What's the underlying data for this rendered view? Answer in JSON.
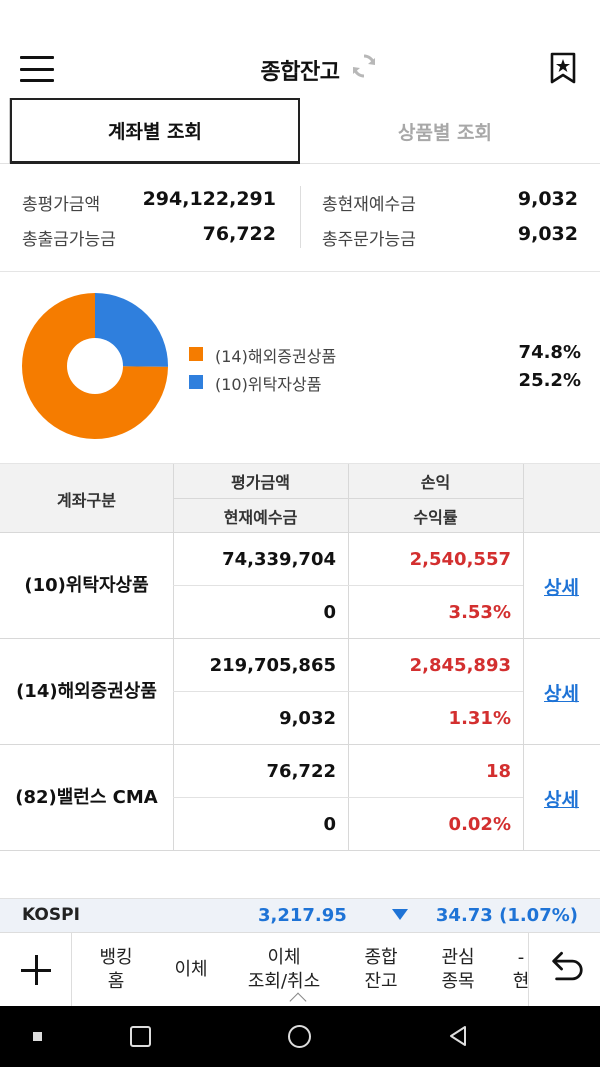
{
  "header": {
    "title": "종합잔고"
  },
  "tabs": [
    {
      "label": "계좌별 조회",
      "active": true
    },
    {
      "label": "상품별 조회",
      "active": false
    }
  ],
  "summary": {
    "total_eval_label": "총평가금액",
    "total_eval_value": "294,122,291",
    "withdrawable_label": "총출금가능금",
    "withdrawable_value": "76,722",
    "cash_label": "총현재예수금",
    "cash_value": "9,032",
    "orderable_label": "총주문가능금",
    "orderable_value": "9,032"
  },
  "allocation": {
    "items": [
      {
        "label": "(14)해외증권상품",
        "pct": "74.8%",
        "value": 74.8,
        "color": "#f57c00"
      },
      {
        "label": "(10)위탁자상품",
        "pct": "25.2%",
        "value": 25.2,
        "color": "#2f7fdd"
      }
    ]
  },
  "table": {
    "headers": {
      "account": "계좌구분",
      "eval": "평가금액",
      "pnl": "손익",
      "cash": "현재예수금",
      "rate": "수익률"
    },
    "rows": [
      {
        "name": "(10)위탁자상품",
        "eval": "74,339,704",
        "pnl": "2,540,557",
        "cash": "0",
        "rate": "3.53%",
        "link": "상세"
      },
      {
        "name": "(14)해외증권상품",
        "eval": "219,705,865",
        "pnl": "2,845,893",
        "cash": "9,032",
        "rate": "1.31%",
        "link": "상세"
      },
      {
        "name": "(82)밸런스 CMA",
        "eval": "76,722",
        "pnl": "18",
        "cash": "0",
        "rate": "0.02%",
        "link": "상세"
      }
    ]
  },
  "index": {
    "name": "KOSPI",
    "value": "3,217.95",
    "direction": "down",
    "change": "34.73 (1.07%)"
  },
  "bottom_nav": {
    "items": [
      {
        "label": "뱅킹\n홈"
      },
      {
        "label": "이체"
      },
      {
        "label": "이체\n조회/취소"
      },
      {
        "label": "종합\n잔고"
      },
      {
        "label": "관심\n종목"
      },
      {
        "label": "-\n현"
      }
    ]
  },
  "colors": {
    "accent_blue": "#1e73d6",
    "profit_red": "#d32f2f",
    "orange": "#f57c00",
    "blue": "#2f7fdd"
  }
}
